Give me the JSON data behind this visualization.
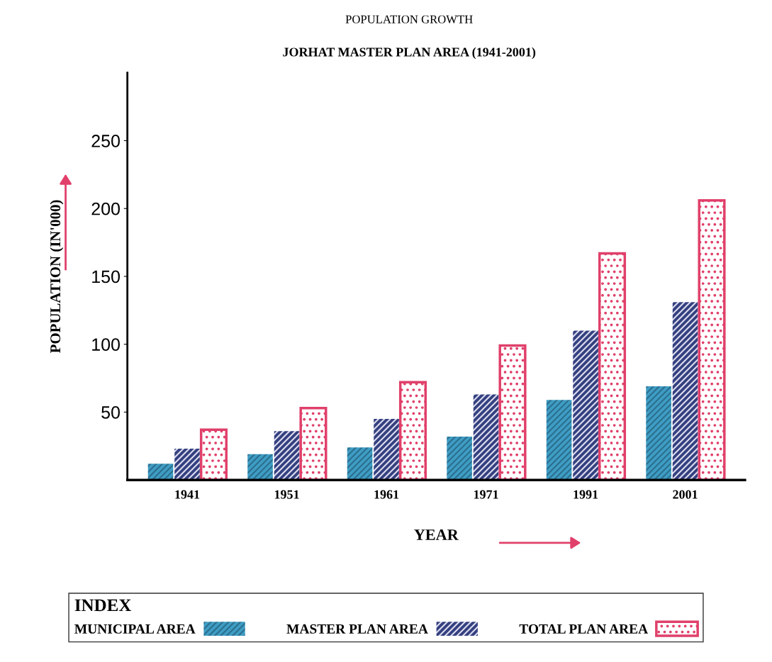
{
  "chart_data": {
    "type": "bar",
    "title": "POPULATION GROWTH",
    "subtitle": "JORHAT MASTER PLAN AREA (1941-2001)",
    "xlabel": "YEAR",
    "ylabel": "POPULATION (IN'000)",
    "legend_title": "INDEX",
    "categories": [
      "1941",
      "1951",
      "1961",
      "1971",
      "1991",
      "2001"
    ],
    "series": [
      {
        "name": "MUNICIPAL AREA",
        "color": "#3f9dc4",
        "values": [
          12,
          19,
          24,
          32,
          59,
          69
        ]
      },
      {
        "name": "MASTER PLAN AREA",
        "color": "#34407f",
        "values": [
          23,
          36,
          45,
          63,
          110,
          131
        ]
      },
      {
        "name": "TOTAL PLAN AREA",
        "color": "#e0406a",
        "values": [
          37,
          53,
          72,
          99,
          167,
          206
        ]
      }
    ],
    "ylim": [
      0,
      300
    ],
    "yticks": [
      50,
      100,
      150,
      200,
      250
    ],
    "grid": false,
    "legend": "bottom"
  }
}
